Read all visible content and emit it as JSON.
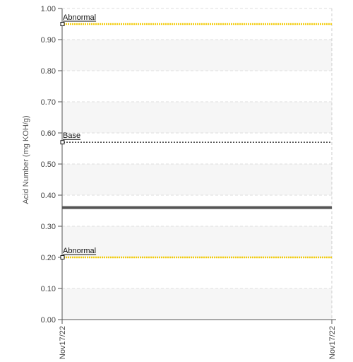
{
  "chart_data": {
    "type": "line",
    "title": "",
    "xlabel": "",
    "ylabel": "Acid Number (mg KOH/g)",
    "ylim": [
      0,
      1
    ],
    "yticks": [
      "0.00",
      "0.10",
      "0.20",
      "0.30",
      "0.40",
      "0.50",
      "0.60",
      "0.70",
      "0.80",
      "0.90",
      "1.00"
    ],
    "x_ticks": [
      "Nov17/22",
      "Nov17/22"
    ],
    "grid": true,
    "legend": "none",
    "series": [
      {
        "values": [
          0.36,
          0.36
        ],
        "color": "#555555"
      }
    ],
    "reference_lines": [
      {
        "label": "Abnormal",
        "value": 0.95,
        "color": "#f2cc0c",
        "style": "dotted"
      },
      {
        "label": "Base",
        "value": 0.57,
        "color": "#333333",
        "style": "dotted"
      },
      {
        "label": "Abnormal",
        "value": 0.2,
        "color": "#f2cc0c",
        "style": "dotted"
      }
    ]
  }
}
